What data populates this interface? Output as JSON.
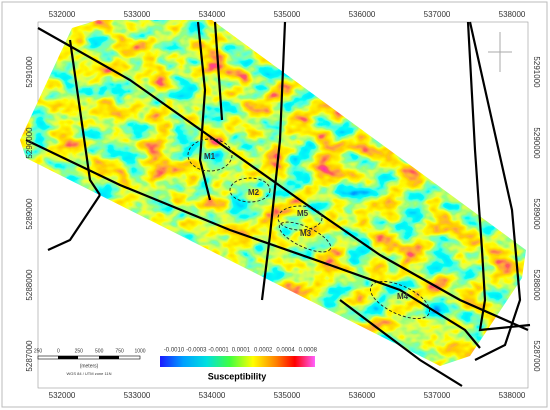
{
  "map": {
    "x_ticks": [
      "532000",
      "533000",
      "534000",
      "535000",
      "536000",
      "537000",
      "538000"
    ],
    "y_ticks": [
      "5291000",
      "5290000",
      "5289000",
      "5288000",
      "5287000"
    ],
    "anomalies": [
      "M1",
      "M2",
      "M5",
      "M3",
      "M4"
    ],
    "legend": {
      "labels": [
        "-0.0010",
        "-0.0003",
        "-0.0001",
        "0.0001",
        "0.0002",
        "0.0004",
        "0.0008"
      ],
      "title": "Susceptibility"
    },
    "scale_bar": {
      "labels": [
        "250",
        "0",
        "250",
        "500",
        "750",
        "1000"
      ],
      "unit": "(meters)",
      "projection": "WGS 84 / UTM zone 11N"
    }
  }
}
